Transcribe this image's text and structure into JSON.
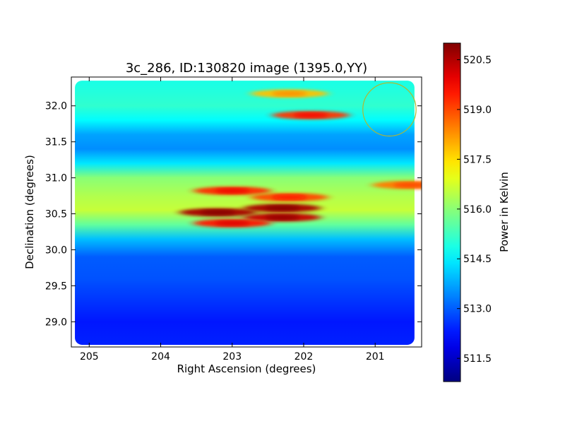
{
  "chart_data": {
    "type": "heatmap",
    "title": "3c_286, ID:130820 image (1395.0,YY)",
    "xlabel": "Right Ascension (degrees)",
    "ylabel": "Declination (degrees)",
    "colorbar_label": "Power in Kelvin",
    "colormap": "jet",
    "x_reversed": true,
    "xlim": [
      205.25,
      200.35
    ],
    "ylim": [
      28.65,
      32.4
    ],
    "x_ticks": [
      205,
      204,
      203,
      202,
      201
    ],
    "x_tick_labels": [
      "205",
      "204",
      "203",
      "202",
      "201"
    ],
    "y_ticks": [
      29.0,
      29.5,
      30.0,
      30.5,
      31.0,
      31.5,
      32.0
    ],
    "y_tick_labels": [
      "29.0",
      "29.5",
      "30.0",
      "30.5",
      "31.0",
      "31.5",
      "32.0"
    ],
    "colorbar_range": [
      510.8,
      521.0
    ],
    "colorbar_ticks": [
      511.5,
      513.0,
      514.5,
      516.0,
      517.5,
      519.0,
      520.5
    ],
    "colorbar_tick_labels": [
      "511.5",
      "513.0",
      "514.5",
      "516.0",
      "517.5",
      "519.0",
      "520.5"
    ],
    "dec_profile": [
      {
        "dec": 28.7,
        "value": 512.4
      },
      {
        "dec": 29.0,
        "value": 512.3
      },
      {
        "dec": 29.3,
        "value": 512.6
      },
      {
        "dec": 29.6,
        "value": 512.9
      },
      {
        "dec": 29.9,
        "value": 513.0
      },
      {
        "dec": 30.15,
        "value": 514.0
      },
      {
        "dec": 30.35,
        "value": 515.6
      },
      {
        "dec": 30.55,
        "value": 516.6
      },
      {
        "dec": 30.75,
        "value": 516.4
      },
      {
        "dec": 31.0,
        "value": 516.0
      },
      {
        "dec": 31.2,
        "value": 514.4
      },
      {
        "dec": 31.4,
        "value": 513.5
      },
      {
        "dec": 31.6,
        "value": 513.7
      },
      {
        "dec": 31.8,
        "value": 514.6
      },
      {
        "dec": 32.0,
        "value": 515.1
      },
      {
        "dec": 32.3,
        "value": 514.9
      }
    ],
    "hotspots": [
      {
        "ra": 203.2,
        "dec": 30.52,
        "value": 520.6
      },
      {
        "ra": 202.3,
        "dec": 30.58,
        "value": 520.6
      },
      {
        "ra": 202.3,
        "dec": 30.45,
        "value": 520.3
      },
      {
        "ra": 203.0,
        "dec": 30.37,
        "value": 519.5
      },
      {
        "ra": 203.0,
        "dec": 30.82,
        "value": 519.3
      },
      {
        "ra": 202.2,
        "dec": 30.73,
        "value": 519.0
      },
      {
        "ra": 201.9,
        "dec": 31.87,
        "value": 519.2
      },
      {
        "ra": 202.2,
        "dec": 32.17,
        "value": 517.8
      },
      {
        "ra": 200.5,
        "dec": 30.9,
        "value": 518.5
      }
    ],
    "source_marker": {
      "ra": 200.8,
      "dec": 31.95,
      "radius_deg": 0.37,
      "color": "#b0b830"
    }
  }
}
